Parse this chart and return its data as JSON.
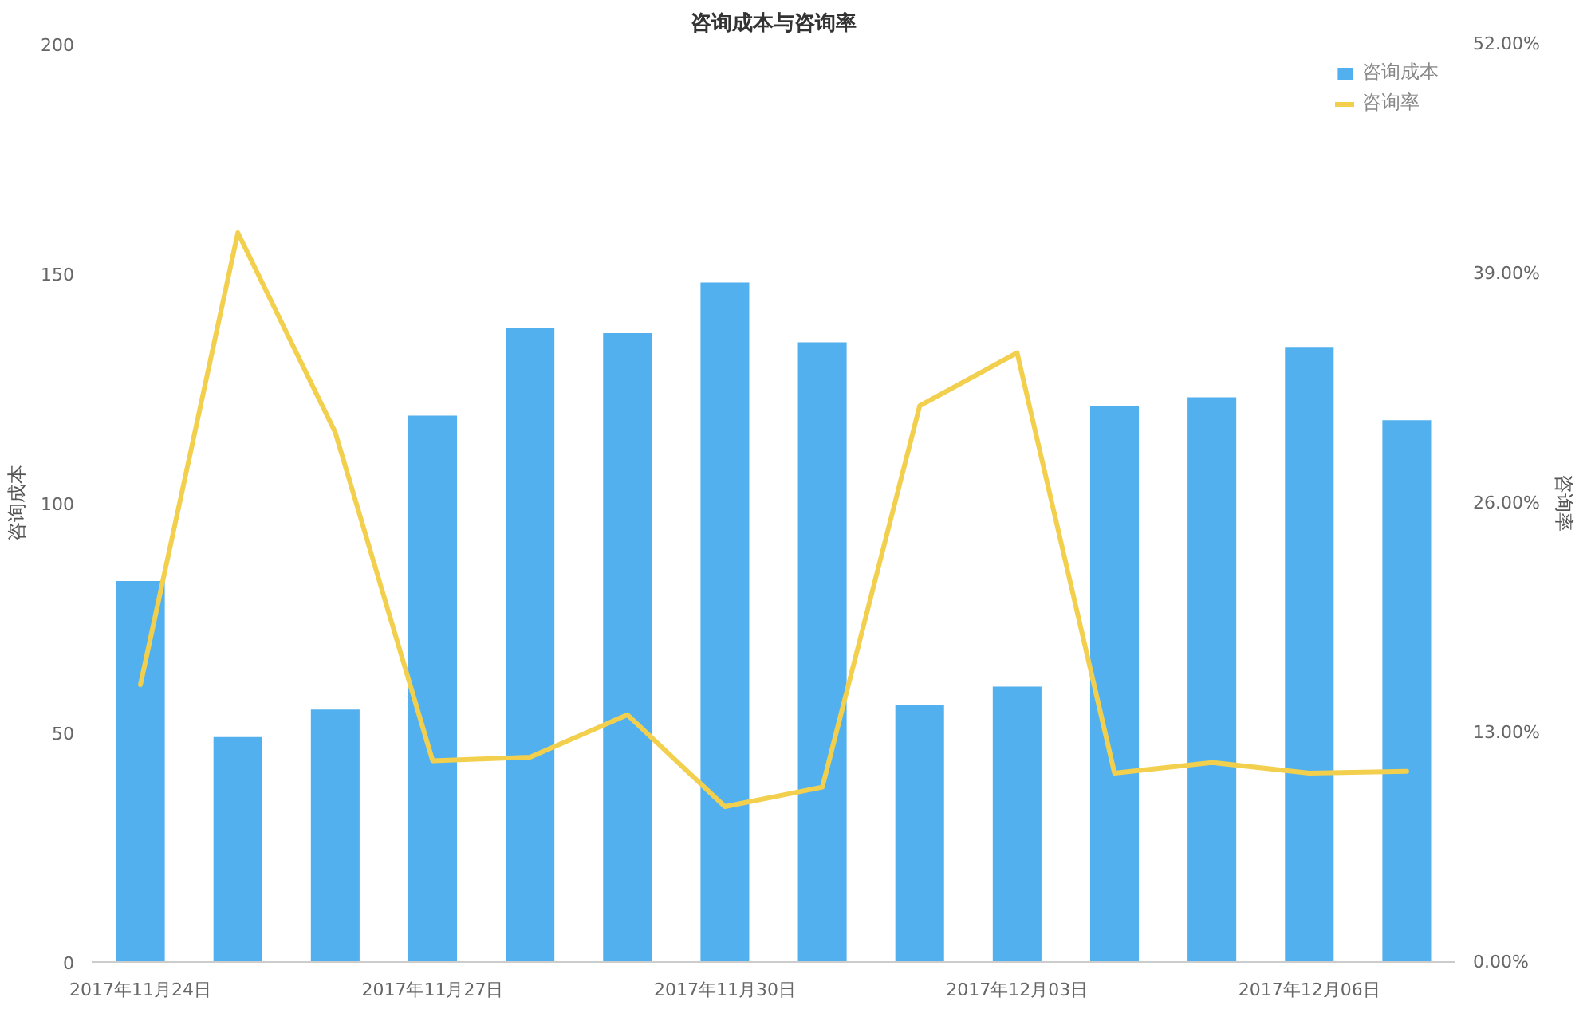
{
  "chart_data": {
    "type": "bar",
    "title": "咨询成本与咨询率",
    "ylabel": "咨询成本",
    "y2label": "咨询率",
    "categories": [
      "2017年11月24日",
      null,
      null,
      "2017年11月27日",
      null,
      null,
      "2017年11月30日",
      null,
      null,
      "2017年12月03日",
      null,
      null,
      "2017年12月06日",
      null
    ],
    "series": [
      {
        "name": "咨询成本",
        "color": "#52b0ee",
        "values": [
          83,
          49,
          55,
          119,
          138,
          137,
          148,
          135,
          56,
          60,
          121,
          123,
          134,
          118
        ]
      },
      {
        "name": "咨询率",
        "type": "line",
        "axis": "y2",
        "color": "#f2d04e",
        "values": [
          15.7,
          41.3,
          30.0,
          11.4,
          11.6,
          14.0,
          8.8,
          9.9,
          31.5,
          34.5,
          10.7,
          11.3,
          10.7,
          10.8
        ]
      }
    ],
    "ylim": [
      0,
      200
    ],
    "yticks": [
      0,
      50,
      100,
      150,
      200
    ],
    "y2lim": [
      0,
      52
    ],
    "y2ticks": [
      {
        "value": 0,
        "label": "0.00%"
      },
      {
        "value": 13,
        "label": "13.00%"
      },
      {
        "value": 26,
        "label": "26.00%"
      },
      {
        "value": 39,
        "label": "39.00%"
      },
      {
        "value": 52,
        "label": "52.00%"
      }
    ],
    "legend": "top right",
    "grid": false
  }
}
